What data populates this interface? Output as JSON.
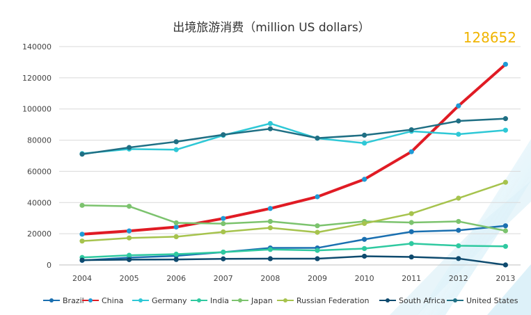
{
  "chart_data": {
    "type": "line",
    "title": "出境旅游消费（million US dollars）",
    "highlight_value": "128652",
    "categories": [
      "2004",
      "2005",
      "2006",
      "2007",
      "2008",
      "2009",
      "2010",
      "2011",
      "2012",
      "2013"
    ],
    "y_ticks": [
      "0",
      "20000",
      "40000",
      "60000",
      "80000",
      "100000",
      "120000",
      "140000"
    ],
    "ylim": [
      0,
      140000
    ],
    "grid": true,
    "legend_position": "bottom",
    "series": [
      {
        "name": "Brazil",
        "color": "#1a6fb0",
        "values": [
          2900,
          4700,
          5800,
          8200,
          10900,
          10900,
          16400,
          21300,
          22200,
          25100
        ]
      },
      {
        "name": "China",
        "color": "#e01b24",
        "values": [
          19700,
          21800,
          24300,
          29800,
          36200,
          43700,
          54900,
          72600,
          102000,
          128652
        ]
      },
      {
        "name": "Germany",
        "color": "#2ec8d6",
        "values": [
          71400,
          74300,
          73900,
          83100,
          90700,
          81200,
          78100,
          85700,
          83800,
          86400
        ]
      },
      {
        "name": "India",
        "color": "#2fc9a0",
        "values": [
          4800,
          6200,
          6900,
          8200,
          9900,
          9300,
          10500,
          13700,
          12300,
          11900
        ]
      },
      {
        "name": "Japan",
        "color": "#7cc36e",
        "values": [
          38200,
          37600,
          27000,
          26500,
          27900,
          25100,
          27900,
          27200,
          27900,
          21900
        ]
      },
      {
        "name": "Russian Federation",
        "color": "#a6c34d",
        "values": [
          15300,
          17300,
          18100,
          21200,
          23800,
          20900,
          26600,
          32900,
          42800,
          53000
        ]
      },
      {
        "name": "South Africa",
        "color": "#0e4a6e",
        "values": [
          3100,
          3400,
          3500,
          3900,
          4000,
          4000,
          5600,
          5100,
          4100,
          0
        ]
      },
      {
        "name": "United States",
        "color": "#1f6f84",
        "values": [
          71000,
          75300,
          79000,
          83500,
          87300,
          81300,
          83200,
          86700,
          92300,
          93800
        ]
      }
    ]
  }
}
